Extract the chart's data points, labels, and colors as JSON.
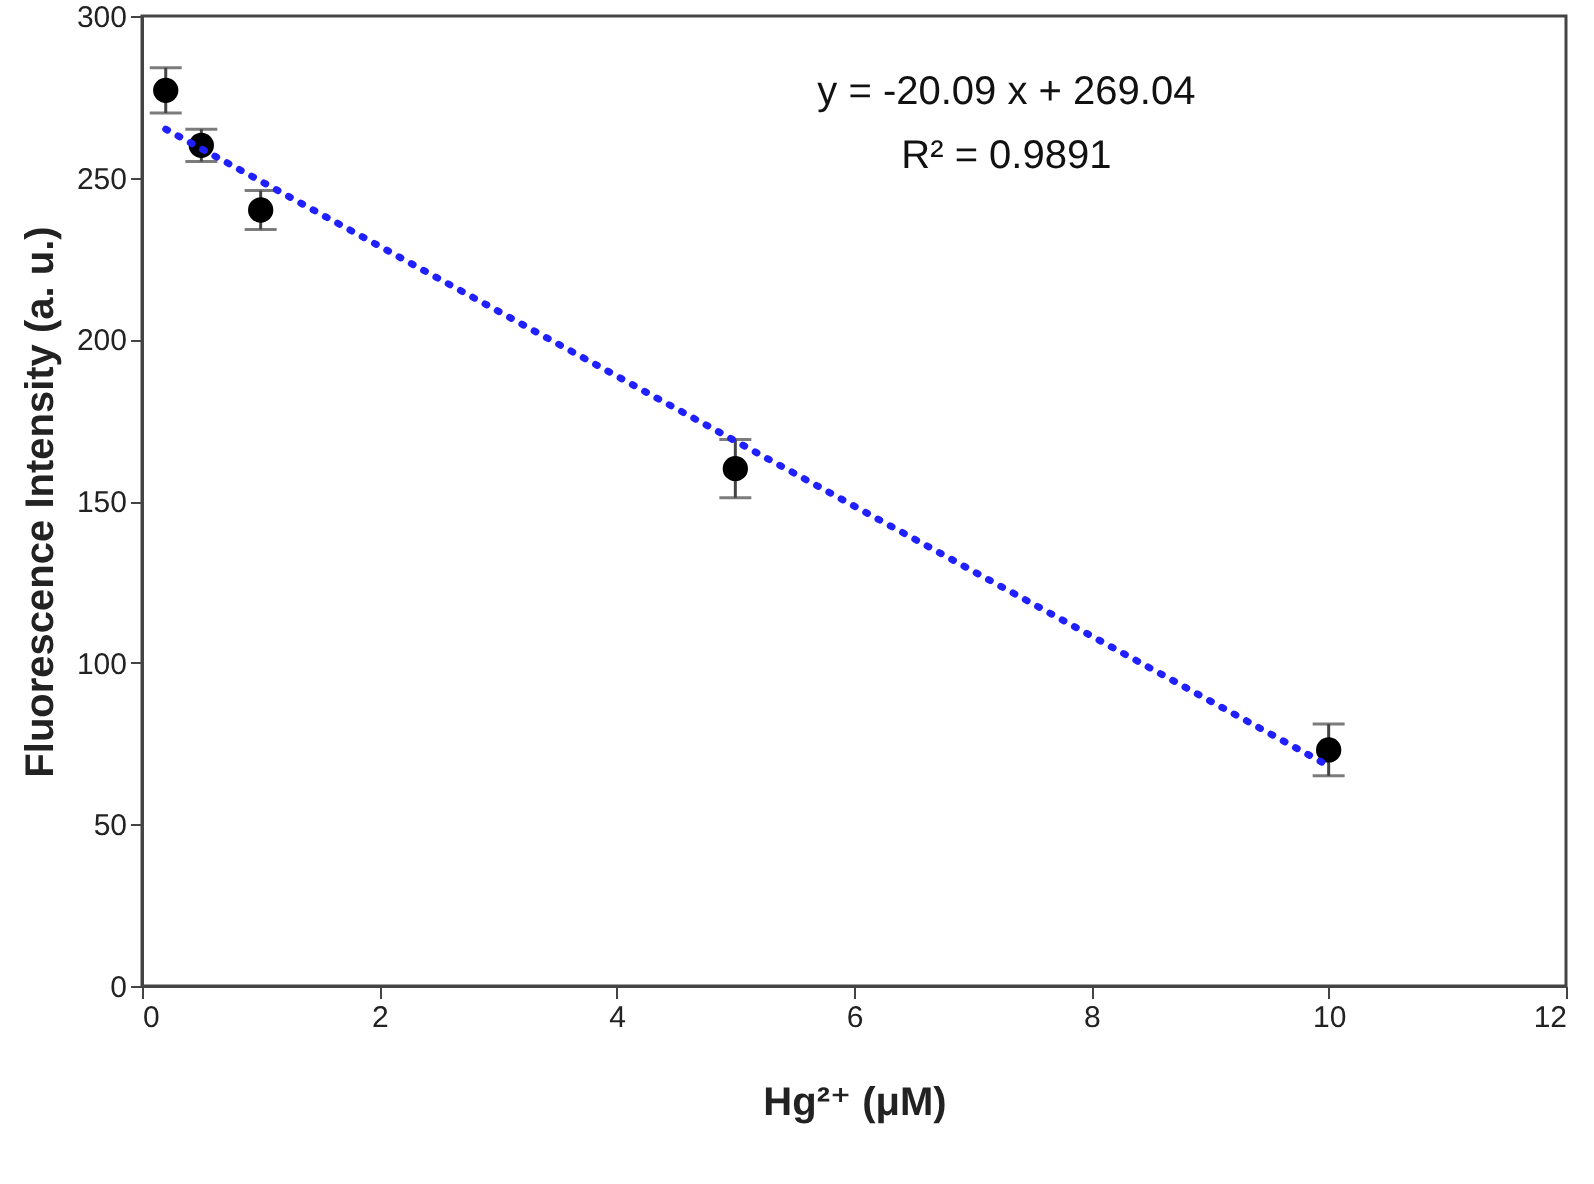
{
  "chart_data": {
    "type": "scatter",
    "xlabel": "Hg²⁺ (μM)",
    "ylabel": "Fluorescence Intensity (a. u.)",
    "x": [
      0.2,
      0.5,
      1,
      5,
      10
    ],
    "xlim": [
      0,
      12
    ],
    "xticks": [
      0,
      2,
      4,
      6,
      8,
      10,
      12
    ],
    "ylim": [
      0,
      300
    ],
    "yticks": [
      0,
      50,
      100,
      150,
      200,
      250,
      300
    ],
    "grid": false,
    "series": [
      {
        "marker": "circle",
        "color": "#000000",
        "values": [
          277,
          260,
          240,
          160,
          73
        ],
        "errors": [
          7,
          5,
          6,
          9,
          8
        ]
      },
      {
        "type": "line",
        "x": [
          0.2,
          10
        ],
        "color": "#2020ff",
        "line_style": "dotted",
        "values": [
          265.0,
          68.1
        ]
      }
    ],
    "annotations": [
      "y = -20.09 x + 269.04",
      "R² = 0.9891"
    ]
  }
}
